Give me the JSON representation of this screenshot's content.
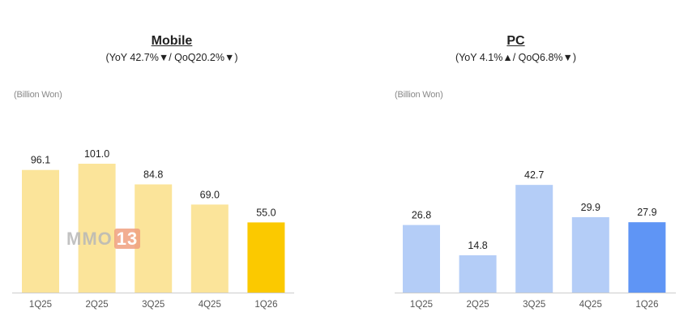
{
  "watermark": {
    "text": "MMO",
    "number": "13"
  },
  "chart_data": [
    {
      "type": "bar",
      "title": "Mobile",
      "subtitle": "(YoY 42.7%▼/ QoQ20.2%▼)",
      "unit_label": "(Billion Won)",
      "categories": [
        "1Q25",
        "2Q25",
        "3Q25",
        "4Q25",
        "1Q26"
      ],
      "values": [
        96.1,
        101.0,
        84.8,
        69.0,
        55.0
      ],
      "value_labels": [
        "96.1",
        "101.0",
        "84.8",
        "69.0",
        "55.0"
      ],
      "ylim": [
        0,
        101.0
      ],
      "colors": {
        "bar": "#fbe49a",
        "highlight": "#fbc900",
        "axis": "#cccccc"
      },
      "highlight_index": 4
    },
    {
      "type": "bar",
      "title": "PC",
      "subtitle": "(YoY 4.1%▲/ QoQ6.8%▼)",
      "unit_label": "(Billion Won)",
      "categories": [
        "1Q25",
        "2Q25",
        "3Q25",
        "4Q25",
        "1Q26"
      ],
      "values": [
        26.8,
        14.8,
        42.7,
        29.9,
        27.9
      ],
      "value_labels": [
        "26.8",
        "14.8",
        "42.7",
        "29.9",
        "27.9"
      ],
      "ylim": [
        0,
        51.1
      ],
      "colors": {
        "bar": "#b4cdf7",
        "highlight": "#5f95f5",
        "axis": "#cccccc"
      },
      "highlight_index": 4
    }
  ]
}
